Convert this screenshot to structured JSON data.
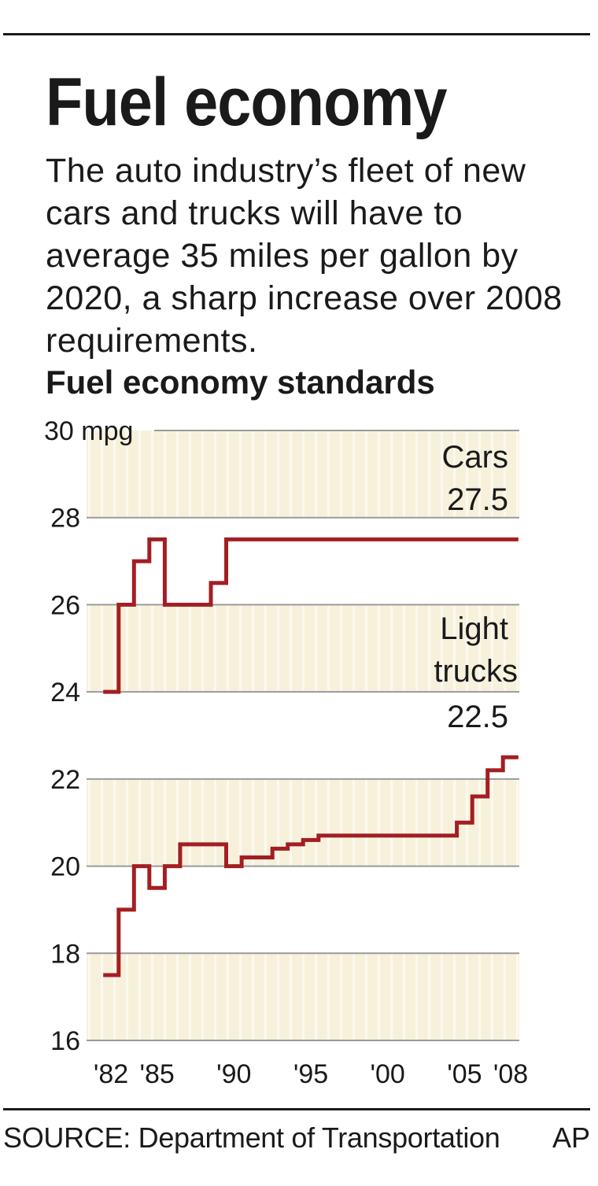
{
  "headline": "Fuel economy",
  "chatter": "The auto industry’s fleet of new cars and trucks will have to average 35 miles per gallon by 2020, a sharp increase over 2008 requirements.",
  "source": "SOURCE: Department of Transportation",
  "credit": "AP",
  "colors": {
    "line": "#a31e22",
    "grid": "#9a9a9a",
    "band": "#f7f1dc",
    "text": "#1a1a1a"
  },
  "chart_data": {
    "type": "line",
    "step": true,
    "title": "Fuel economy standards",
    "ylim": [
      16,
      30
    ],
    "xlim": [
      1982,
      2008
    ],
    "grid": true,
    "y_ticks": [
      {
        "value": 30,
        "label": "30 mpg"
      },
      {
        "value": 28,
        "label": "28"
      },
      {
        "value": 26,
        "label": "26"
      },
      {
        "value": 24,
        "label": "24"
      },
      {
        "value": 22,
        "label": "22"
      },
      {
        "value": 20,
        "label": "20"
      },
      {
        "value": 18,
        "label": "18"
      },
      {
        "value": 16,
        "label": "16"
      }
    ],
    "x_ticks": [
      {
        "value": 1982,
        "label": "'82"
      },
      {
        "value": 1985,
        "label": "'85"
      },
      {
        "value": 1990,
        "label": "'90"
      },
      {
        "value": 1995,
        "label": "'95"
      },
      {
        "value": 2000,
        "label": "'00"
      },
      {
        "value": 2005,
        "label": "'05"
      },
      {
        "value": 2008,
        "label": "'08"
      }
    ],
    "series": [
      {
        "name": "Cars",
        "end_label": "27.5",
        "x": [
          1982,
          1983,
          1984,
          1985,
          1986,
          1987,
          1988,
          1989,
          1990,
          1991,
          1992,
          1993,
          1994,
          1995,
          1996,
          1997,
          1998,
          1999,
          2000,
          2001,
          2002,
          2003,
          2004,
          2005,
          2006,
          2007,
          2008
        ],
        "values": [
          24.0,
          26.0,
          27.0,
          27.5,
          26.0,
          26.0,
          26.0,
          26.5,
          27.5,
          27.5,
          27.5,
          27.5,
          27.5,
          27.5,
          27.5,
          27.5,
          27.5,
          27.5,
          27.5,
          27.5,
          27.5,
          27.5,
          27.5,
          27.5,
          27.5,
          27.5,
          27.5
        ]
      },
      {
        "name": "Light trucks",
        "end_label": "22.5",
        "x": [
          1982,
          1983,
          1984,
          1985,
          1986,
          1987,
          1988,
          1989,
          1990,
          1991,
          1992,
          1993,
          1994,
          1995,
          1996,
          1997,
          1998,
          1999,
          2000,
          2001,
          2002,
          2003,
          2004,
          2005,
          2006,
          2007,
          2008
        ],
        "values": [
          17.5,
          19.0,
          20.0,
          19.5,
          20.0,
          20.5,
          20.5,
          20.5,
          20.0,
          20.2,
          20.2,
          20.4,
          20.5,
          20.6,
          20.7,
          20.7,
          20.7,
          20.7,
          20.7,
          20.7,
          20.7,
          20.7,
          20.7,
          21.0,
          21.6,
          22.2,
          22.5
        ]
      }
    ]
  }
}
